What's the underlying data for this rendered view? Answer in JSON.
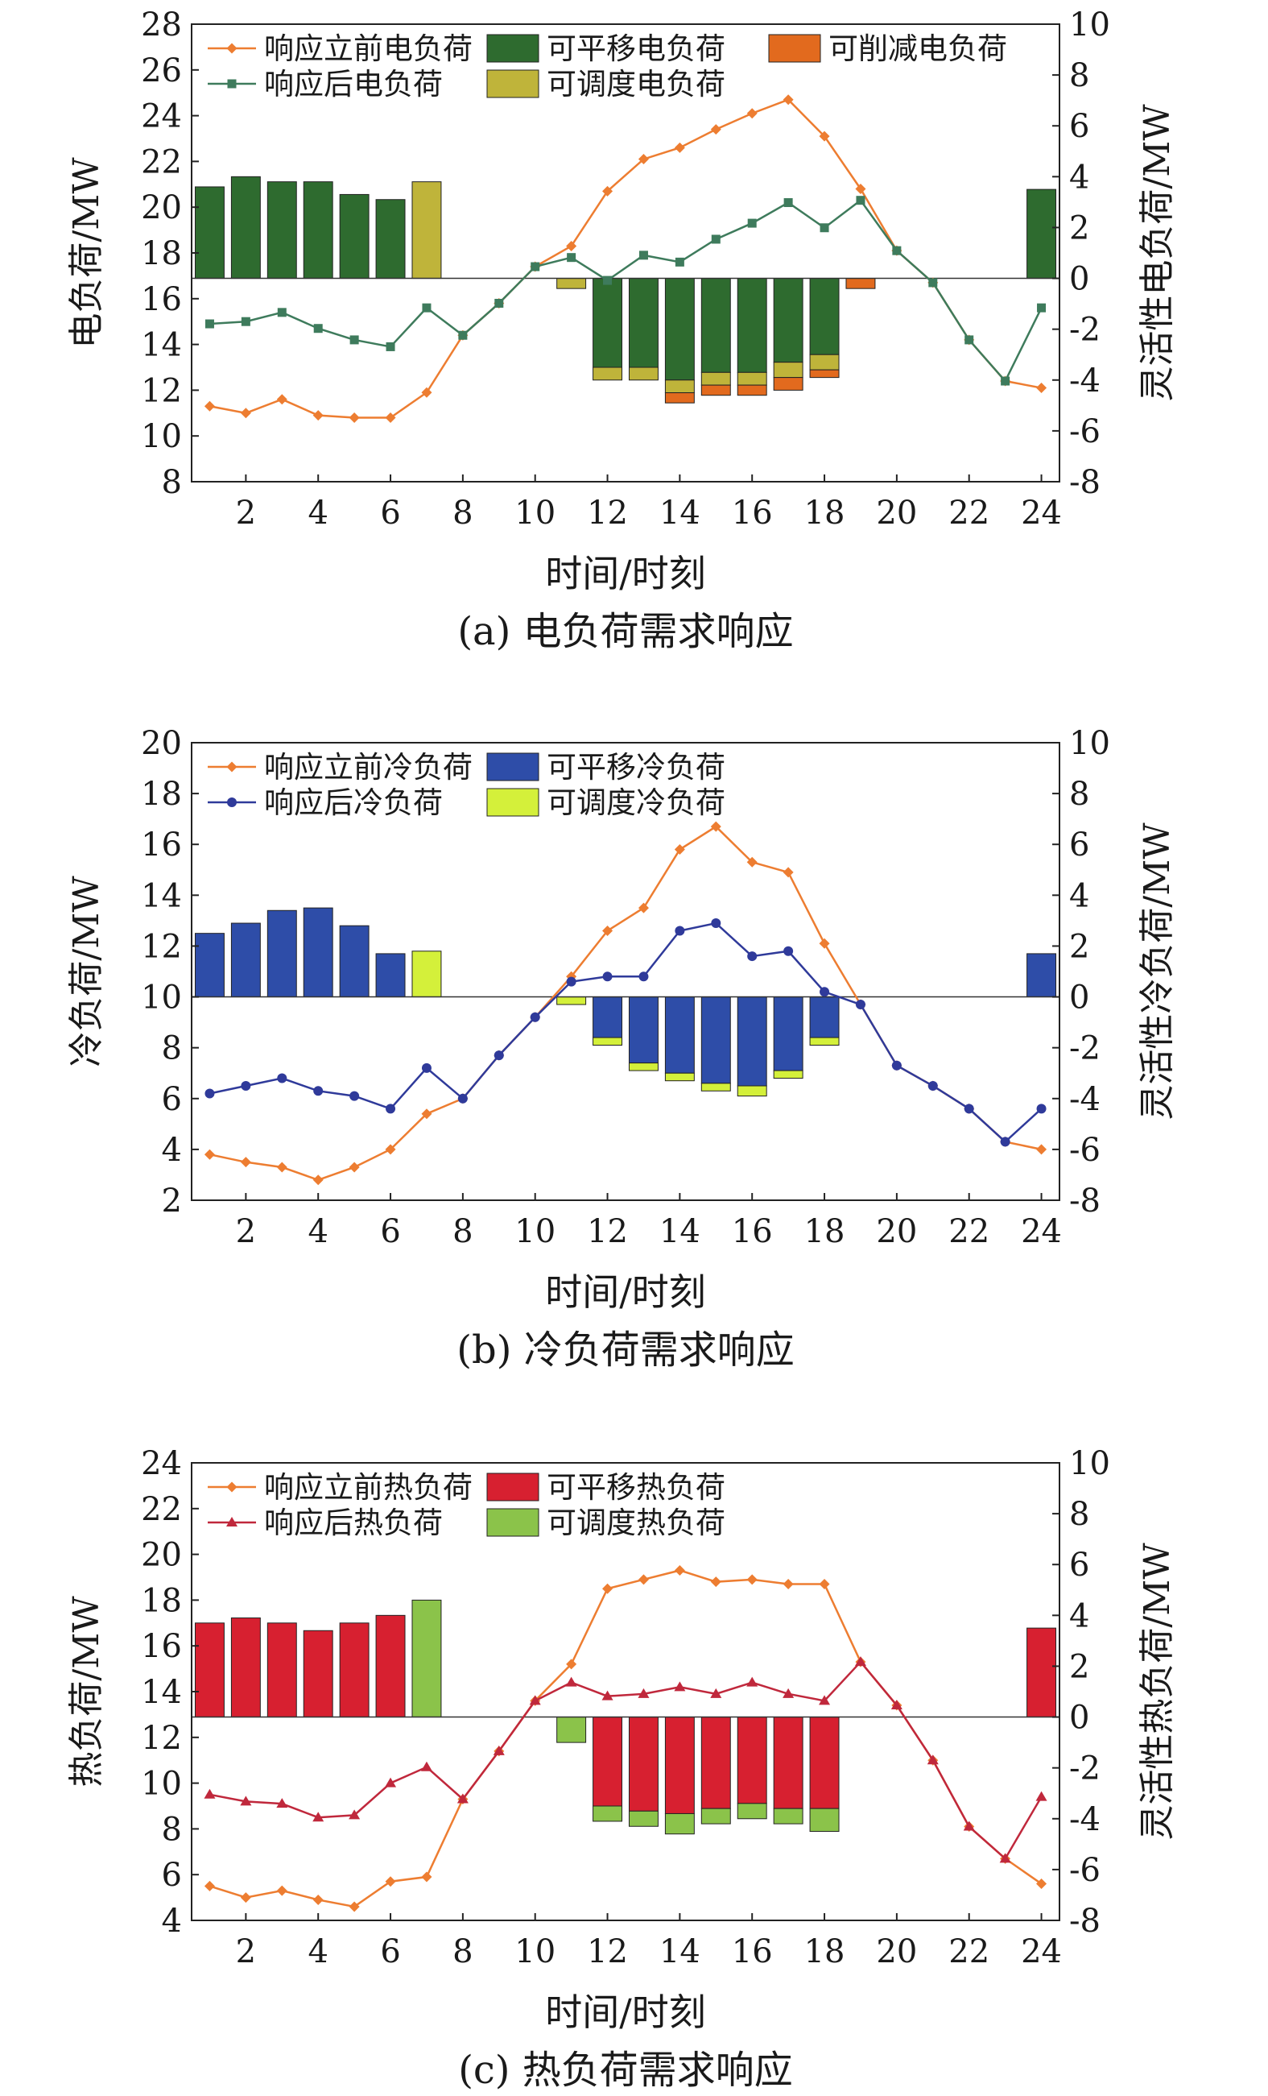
{
  "colors": {
    "before_elec": "#ED7D31",
    "after_elec": "#3E7B5C",
    "shift_elec": "#2E6B2F",
    "cut_elec": "#E26A1E",
    "dispatch_elec": "#BFB43A",
    "before_cool": "#ED7D31",
    "after_cool": "#2F3A9A",
    "shift_cool": "#2E4DA8",
    "dispatch_cool": "#D4F03A",
    "before_heat": "#ED7D31",
    "after_heat": "#C0283C",
    "shift_heat": "#D72030",
    "dispatch_heat": "#8BC34A"
  },
  "chart_data": [
    {
      "type": "bar",
      "caption": "(a) 电负荷需求响应",
      "xlabel": "时间/时刻",
      "ylabel": "电负荷/MW",
      "y2label": "灵活性电负荷/MW",
      "x": [
        1,
        2,
        3,
        4,
        5,
        6,
        7,
        8,
        9,
        10,
        11,
        12,
        13,
        14,
        15,
        16,
        17,
        18,
        19,
        20,
        21,
        22,
        23,
        24
      ],
      "xticks": [
        2,
        4,
        6,
        8,
        10,
        12,
        14,
        16,
        18,
        20,
        22,
        24
      ],
      "ylim": [
        8,
        28
      ],
      "yticks": [
        8,
        10,
        12,
        14,
        16,
        18,
        20,
        22,
        24,
        26,
        28
      ],
      "y2lim": [
        -8,
        10
      ],
      "y2ticks": [
        -8,
        -6,
        -4,
        -2,
        0,
        2,
        4,
        6,
        8,
        10
      ],
      "grid": false,
      "legend": "top",
      "lines": [
        {
          "name": "响应立前电负荷",
          "color_key": "before_elec",
          "marker": "diamond",
          "values": [
            11.3,
            11.0,
            11.6,
            10.9,
            10.8,
            10.8,
            11.9,
            14.4,
            15.8,
            17.4,
            18.3,
            20.7,
            22.1,
            22.6,
            23.4,
            24.1,
            24.7,
            23.1,
            20.8,
            18.1,
            16.7,
            14.2,
            12.4,
            12.1
          ]
        },
        {
          "name": "响应后电负荷",
          "color_key": "after_elec",
          "marker": "square",
          "values": [
            14.9,
            15.0,
            15.4,
            14.7,
            14.2,
            13.9,
            15.6,
            14.4,
            15.8,
            17.4,
            17.8,
            16.8,
            17.9,
            17.6,
            18.6,
            19.3,
            20.2,
            19.1,
            20.3,
            18.1,
            16.7,
            14.2,
            12.4,
            15.6
          ]
        }
      ],
      "bars": [
        {
          "name": "可平移电负荷",
          "color_key": "shift_elec",
          "values": [
            3.6,
            4.0,
            3.8,
            3.8,
            3.3,
            3.1,
            0,
            0,
            0,
            0,
            0,
            -3.5,
            -3.5,
            -4.0,
            -3.7,
            -3.7,
            -3.3,
            -3.0,
            0,
            0,
            0,
            0,
            0,
            3.5
          ]
        },
        {
          "name": "可调度电负荷",
          "color_key": "dispatch_elec",
          "values": [
            0,
            0,
            0,
            0,
            0,
            0,
            3.8,
            0,
            0,
            0,
            -0.4,
            -0.5,
            -0.5,
            -0.5,
            -0.5,
            -0.5,
            -0.6,
            -0.6,
            0,
            0,
            0,
            0,
            0,
            0
          ]
        },
        {
          "name": "可削减电负荷",
          "color_key": "cut_elec",
          "values": [
            0,
            0,
            0,
            0,
            0,
            0,
            0,
            0,
            0,
            0,
            0,
            0,
            0,
            -0.4,
            -0.4,
            -0.4,
            -0.5,
            -0.3,
            -0.4,
            0,
            0,
            0,
            0,
            0
          ]
        }
      ],
      "legend_order": [
        {
          "kind": "line",
          "index": 0
        },
        {
          "kind": "bar",
          "index": 0
        },
        {
          "kind": "bar",
          "index": 2
        },
        {
          "kind": "line",
          "index": 1
        },
        {
          "kind": "bar",
          "index": 1
        }
      ]
    },
    {
      "type": "bar",
      "caption": "(b) 冷负荷需求响应",
      "xlabel": "时间/时刻",
      "ylabel": "冷负荷/MW",
      "y2label": "灵活性冷负荷/MW",
      "x": [
        1,
        2,
        3,
        4,
        5,
        6,
        7,
        8,
        9,
        10,
        11,
        12,
        13,
        14,
        15,
        16,
        17,
        18,
        19,
        20,
        21,
        22,
        23,
        24
      ],
      "xticks": [
        2,
        4,
        6,
        8,
        10,
        12,
        14,
        16,
        18,
        20,
        22,
        24
      ],
      "ylim": [
        2,
        20
      ],
      "yticks": [
        2,
        4,
        6,
        8,
        10,
        12,
        14,
        16,
        18,
        20
      ],
      "y2lim": [
        -8,
        10
      ],
      "y2ticks": [
        -8,
        -6,
        -4,
        -2,
        0,
        2,
        4,
        6,
        8,
        10
      ],
      "grid": false,
      "legend": "top-left",
      "lines": [
        {
          "name": "响应立前冷负荷",
          "color_key": "before_cool",
          "marker": "diamond",
          "values": [
            3.8,
            3.5,
            3.3,
            2.8,
            3.3,
            4.0,
            5.4,
            6.0,
            7.7,
            9.2,
            10.8,
            12.6,
            13.5,
            15.8,
            16.7,
            15.3,
            14.9,
            12.1,
            9.7,
            7.3,
            6.5,
            5.6,
            4.3,
            4.0
          ]
        },
        {
          "name": "响应后冷负荷",
          "color_key": "after_cool",
          "marker": "circle",
          "values": [
            6.2,
            6.5,
            6.8,
            6.3,
            6.1,
            5.6,
            7.2,
            6.0,
            7.7,
            9.2,
            10.6,
            10.8,
            10.8,
            12.6,
            12.9,
            11.6,
            11.8,
            10.2,
            9.7,
            7.3,
            6.5,
            5.6,
            4.3,
            5.6
          ]
        }
      ],
      "bars": [
        {
          "name": "可平移冷负荷",
          "color_key": "shift_cool",
          "values": [
            2.5,
            2.9,
            3.4,
            3.5,
            2.8,
            1.7,
            0,
            0,
            0,
            0,
            0,
            -1.6,
            -2.6,
            -3.0,
            -3.4,
            -3.5,
            -2.9,
            -1.6,
            0,
            0,
            0,
            0,
            0,
            1.7
          ]
        },
        {
          "name": "可调度冷负荷",
          "color_key": "dispatch_cool",
          "values": [
            0,
            0,
            0,
            0,
            0,
            0,
            1.8,
            0,
            0,
            0,
            -0.3,
            -0.3,
            -0.3,
            -0.3,
            -0.3,
            -0.4,
            -0.3,
            -0.3,
            0,
            0,
            0,
            0,
            0,
            0
          ]
        }
      ],
      "legend_order": [
        {
          "kind": "line",
          "index": 0
        },
        {
          "kind": "bar",
          "index": 0
        },
        {
          "kind": "line",
          "index": 1
        },
        {
          "kind": "bar",
          "index": 1
        }
      ]
    },
    {
      "type": "bar",
      "caption": "(c) 热负荷需求响应",
      "xlabel": "时间/时刻",
      "ylabel": "热负荷/MW",
      "y2label": "灵活性热负荷/MW",
      "x": [
        1,
        2,
        3,
        4,
        5,
        6,
        7,
        8,
        9,
        10,
        11,
        12,
        13,
        14,
        15,
        16,
        17,
        18,
        19,
        20,
        21,
        22,
        23,
        24
      ],
      "xticks": [
        2,
        4,
        6,
        8,
        10,
        12,
        14,
        16,
        18,
        20,
        22,
        24
      ],
      "ylim": [
        4,
        24
      ],
      "yticks": [
        4,
        6,
        8,
        10,
        12,
        14,
        16,
        18,
        20,
        22,
        24
      ],
      "y2lim": [
        -8,
        10
      ],
      "y2ticks": [
        -8,
        -6,
        -4,
        -2,
        0,
        2,
        4,
        6,
        8,
        10
      ],
      "grid": false,
      "legend": "top-left",
      "lines": [
        {
          "name": "响应立前热负荷",
          "color_key": "before_heat",
          "marker": "diamond",
          "values": [
            5.5,
            5.0,
            5.3,
            4.9,
            4.6,
            5.7,
            5.9,
            9.3,
            11.4,
            13.6,
            15.2,
            18.5,
            18.9,
            19.3,
            18.8,
            18.9,
            18.7,
            18.7,
            15.3,
            13.4,
            11.0,
            8.1,
            6.7,
            5.6
          ]
        },
        {
          "name": "响应后热负荷",
          "color_key": "after_heat",
          "marker": "triangle",
          "values": [
            9.5,
            9.2,
            9.1,
            8.5,
            8.6,
            10.0,
            10.7,
            9.3,
            11.4,
            13.6,
            14.4,
            13.8,
            13.9,
            14.2,
            13.9,
            14.4,
            13.9,
            13.6,
            15.3,
            13.4,
            11.0,
            8.1,
            6.7,
            9.4
          ]
        }
      ],
      "bars": [
        {
          "name": "可平移热负荷",
          "color_key": "shift_heat",
          "values": [
            3.7,
            3.9,
            3.7,
            3.4,
            3.7,
            4.0,
            0,
            0,
            0,
            0,
            0,
            -3.5,
            -3.7,
            -3.8,
            -3.6,
            -3.4,
            -3.6,
            -3.6,
            0,
            0,
            0,
            0,
            0,
            3.5
          ]
        },
        {
          "name": "可调度热负荷",
          "color_key": "dispatch_heat",
          "values": [
            0,
            0,
            0,
            0,
            0,
            0,
            4.6,
            0,
            0,
            0,
            -1.0,
            -0.6,
            -0.6,
            -0.8,
            -0.6,
            -0.6,
            -0.6,
            -0.9,
            0,
            0,
            0,
            0,
            0,
            0
          ]
        }
      ],
      "legend_order": [
        {
          "kind": "line",
          "index": 0
        },
        {
          "kind": "bar",
          "index": 0
        },
        {
          "kind": "line",
          "index": 1
        },
        {
          "kind": "bar",
          "index": 1
        }
      ]
    }
  ]
}
